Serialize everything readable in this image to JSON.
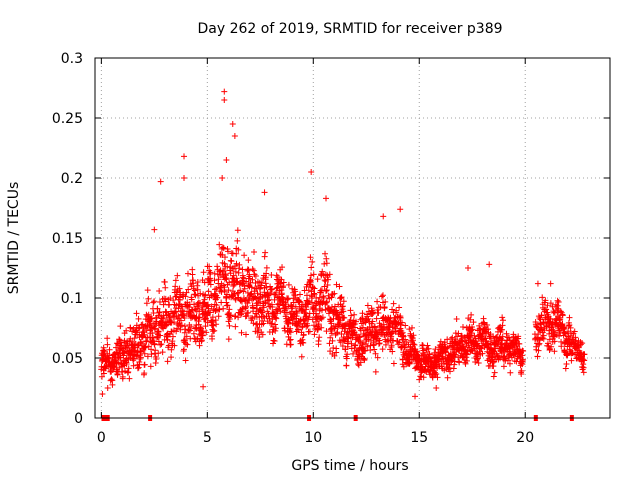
{
  "chart_data": {
    "type": "scatter",
    "title": "Day 262 of 2019, SRMTID for receiver p389",
    "xlabel": "GPS time / hours",
    "ylabel": "SRMTID / TECUs",
    "xlim": [
      -0.3,
      24
    ],
    "ylim": [
      0,
      0.3
    ],
    "xticks": [
      0,
      5,
      10,
      15,
      20
    ],
    "xtick_labels": [
      "0",
      "5",
      "10",
      "15",
      "20"
    ],
    "yticks": [
      0,
      0.05,
      0.1,
      0.15,
      0.2,
      0.25,
      0.3
    ],
    "ytick_labels": [
      "0",
      "0.05",
      "0.1",
      "0.15",
      "0.2",
      "0.25",
      "0.3"
    ],
    "grid": true,
    "marker": "plus",
    "colors": {
      "series": "#ff0000",
      "grid": "#a0a0a0",
      "axis": "#000000"
    },
    "series": [
      {
        "name": "SRMTID",
        "envelope": {
          "hours": [
            0,
            0.5,
            1,
            1.5,
            2,
            2.5,
            3,
            3.5,
            4,
            4.5,
            5,
            5.5,
            6,
            6.5,
            7,
            7.5,
            8,
            8.5,
            9,
            9.5,
            10,
            10.5,
            11,
            11.5,
            12,
            12.5,
            13,
            13.5,
            14,
            14.5,
            15,
            15.5,
            16,
            16.5,
            17,
            17.5,
            18,
            18.5,
            19,
            19.5,
            19.9,
            20.5,
            21,
            21.5,
            22,
            22.5,
            22.8
          ],
          "center": [
            0.045,
            0.048,
            0.05,
            0.058,
            0.065,
            0.075,
            0.08,
            0.085,
            0.088,
            0.085,
            0.09,
            0.11,
            0.115,
            0.105,
            0.105,
            0.1,
            0.095,
            0.095,
            0.085,
            0.085,
            0.1,
            0.1,
            0.085,
            0.075,
            0.065,
            0.07,
            0.075,
            0.075,
            0.07,
            0.058,
            0.048,
            0.045,
            0.05,
            0.055,
            0.06,
            0.065,
            0.065,
            0.06,
            0.06,
            0.058,
            0.055,
            0.07,
            0.08,
            0.08,
            0.065,
            0.055,
            0.05
          ],
          "spread": [
            0.012,
            0.015,
            0.018,
            0.022,
            0.025,
            0.028,
            0.03,
            0.03,
            0.03,
            0.03,
            0.032,
            0.035,
            0.04,
            0.035,
            0.03,
            0.03,
            0.03,
            0.028,
            0.025,
            0.025,
            0.035,
            0.035,
            0.03,
            0.025,
            0.02,
            0.022,
            0.025,
            0.025,
            0.022,
            0.018,
            0.014,
            0.012,
            0.014,
            0.016,
            0.018,
            0.02,
            0.02,
            0.018,
            0.018,
            0.016,
            0.014,
            0.02,
            0.022,
            0.022,
            0.018,
            0.014,
            0.012
          ]
        },
        "outliers": [
          {
            "x": 5.8,
            "y": 0.272
          },
          {
            "x": 5.8,
            "y": 0.265
          },
          {
            "x": 6.2,
            "y": 0.245
          },
          {
            "x": 6.3,
            "y": 0.235
          },
          {
            "x": 3.9,
            "y": 0.218
          },
          {
            "x": 5.9,
            "y": 0.215
          },
          {
            "x": 9.9,
            "y": 0.205
          },
          {
            "x": 3.9,
            "y": 0.2
          },
          {
            "x": 2.8,
            "y": 0.197
          },
          {
            "x": 5.7,
            "y": 0.2
          },
          {
            "x": 10.6,
            "y": 0.183
          },
          {
            "x": 7.7,
            "y": 0.188
          },
          {
            "x": 14.1,
            "y": 0.174
          },
          {
            "x": 13.3,
            "y": 0.168
          },
          {
            "x": 2.5,
            "y": 0.157
          },
          {
            "x": 17.3,
            "y": 0.125
          },
          {
            "x": 18.3,
            "y": 0.128
          },
          {
            "x": 21.2,
            "y": 0.112
          },
          {
            "x": 20.6,
            "y": 0.112
          },
          {
            "x": 0.05,
            "y": 0.02
          },
          {
            "x": 14.8,
            "y": 0.018
          },
          {
            "x": 0.3,
            "y": 0.025
          },
          {
            "x": 4.8,
            "y": 0.026
          },
          {
            "x": 15.8,
            "y": 0.025
          }
        ]
      }
    ],
    "baseline_markers": {
      "y": 0,
      "x": [
        0.1,
        0.2,
        0.3,
        2.3,
        9.8,
        12.0,
        20.5,
        22.2
      ]
    }
  }
}
